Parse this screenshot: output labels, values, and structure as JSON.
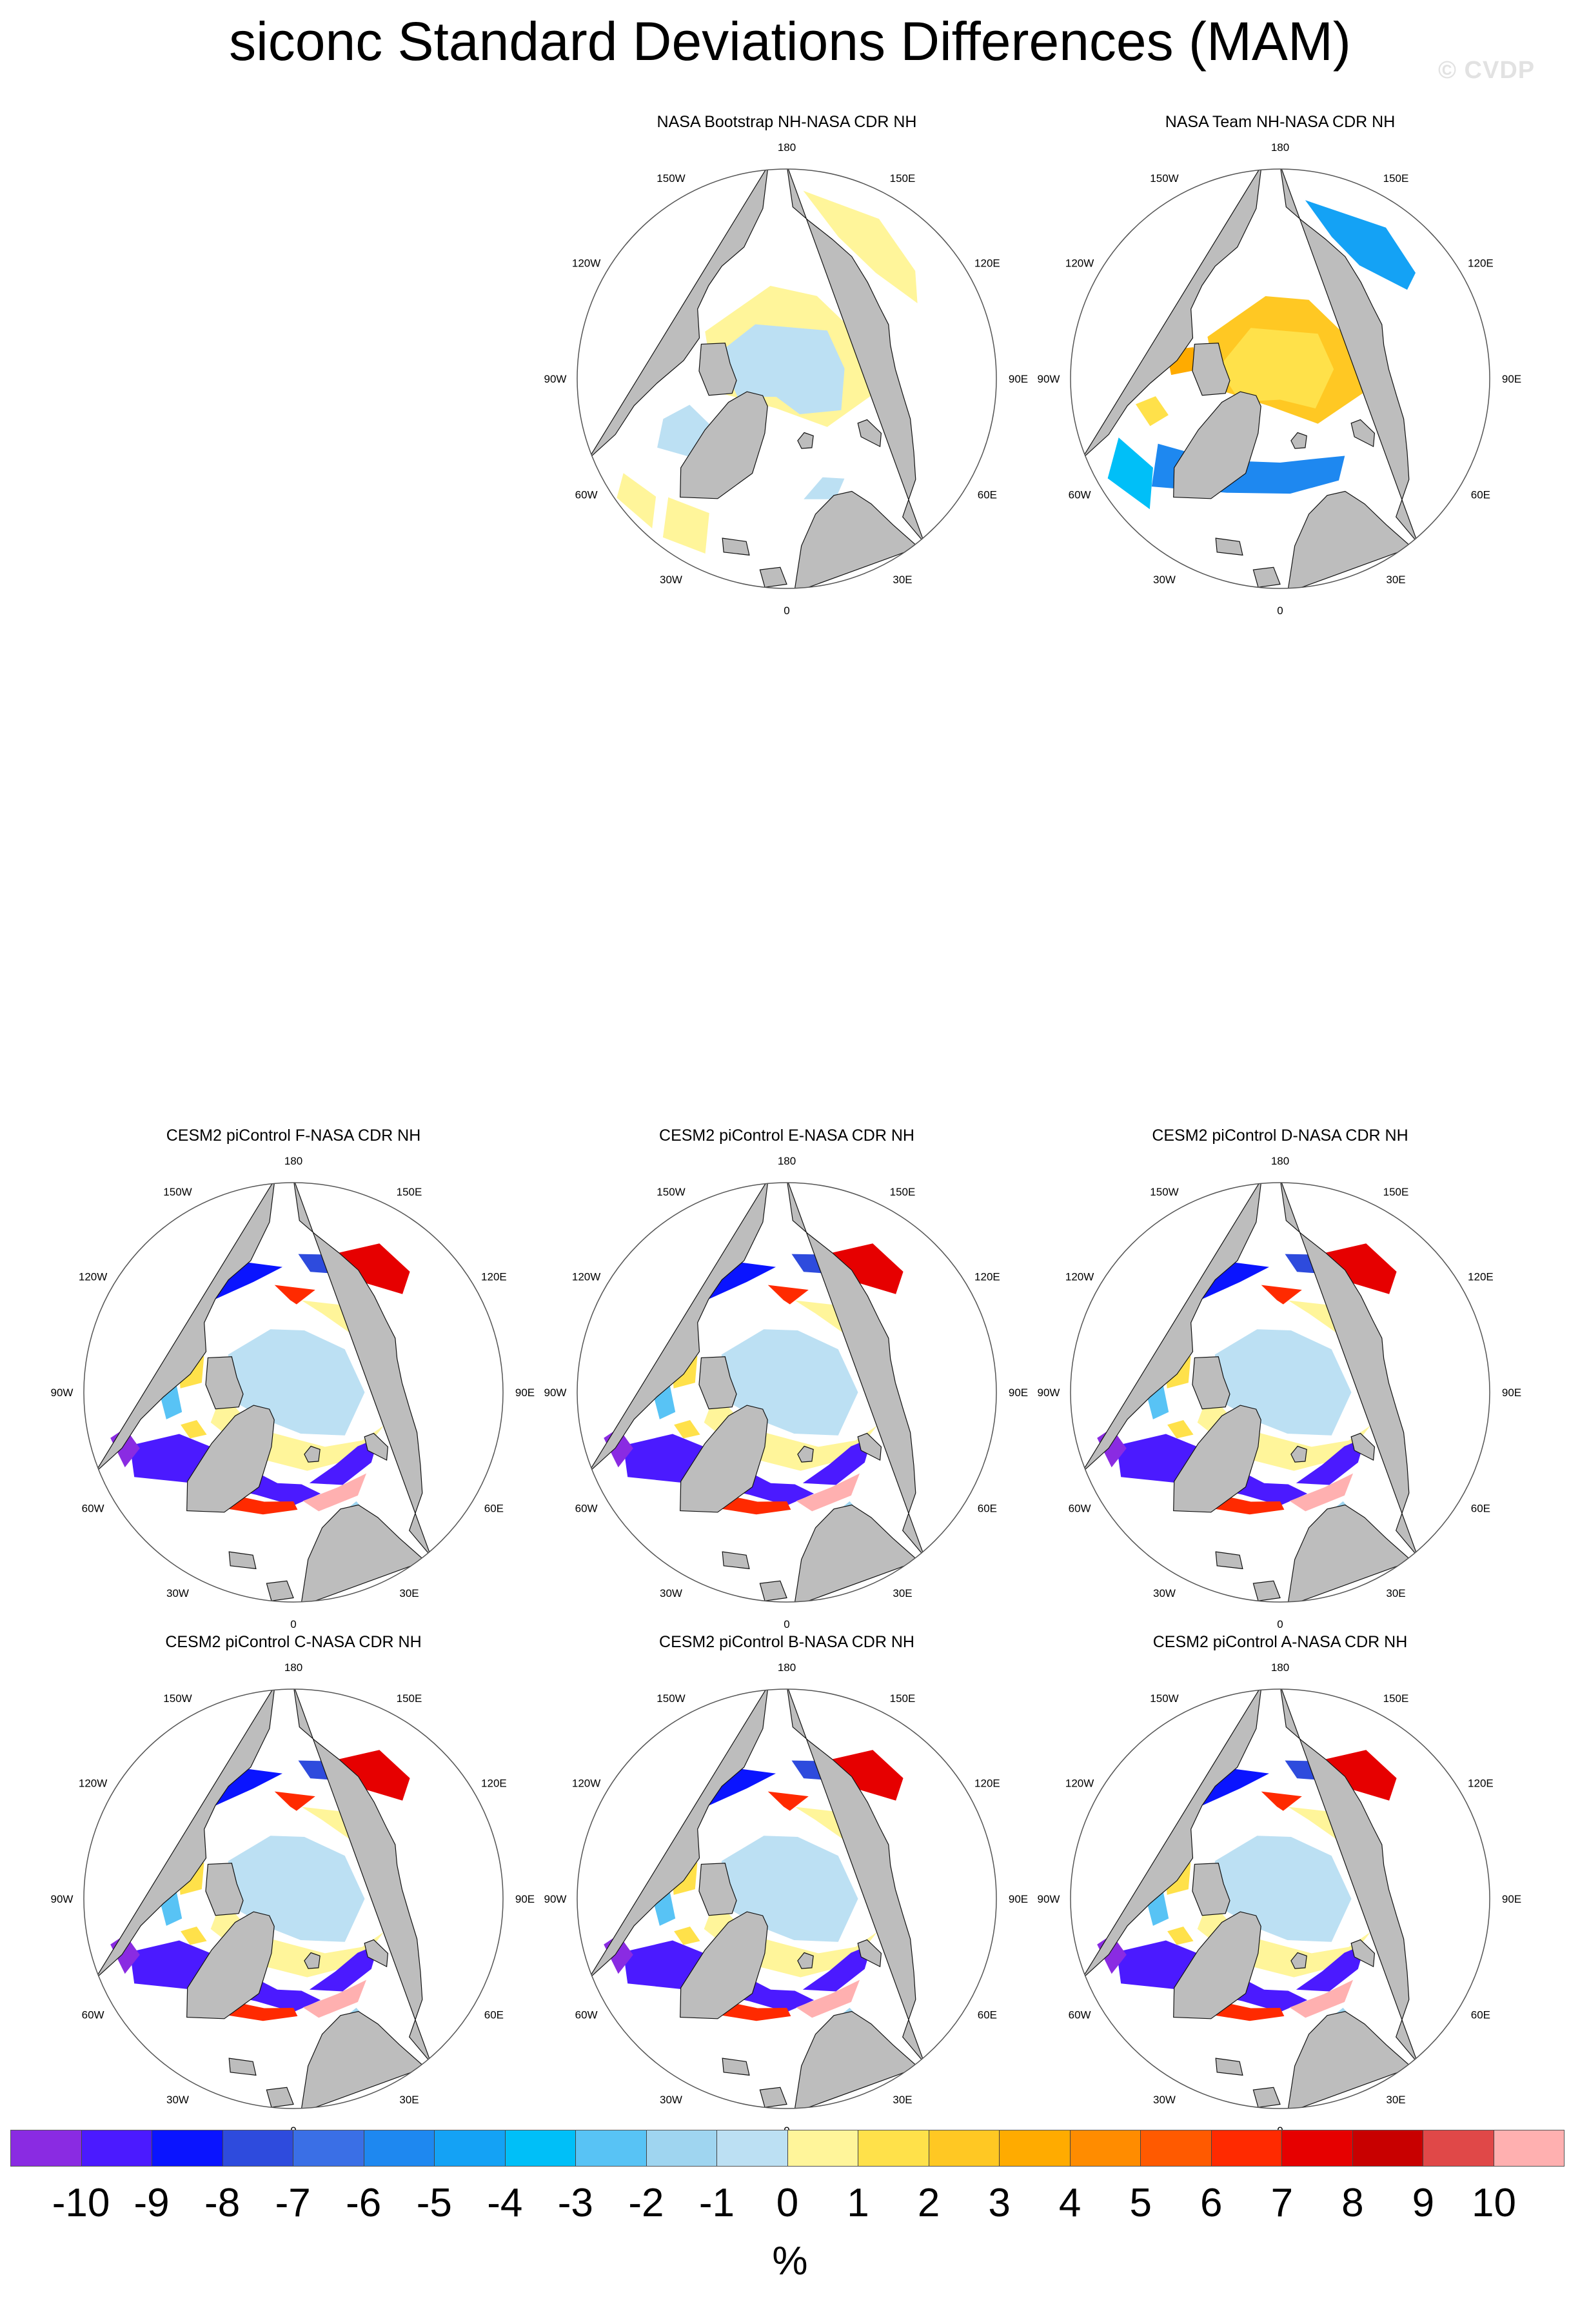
{
  "title": "siconc Standard Deviations Differences (MAM)",
  "watermark": "© CVDP",
  "lon_labels": [
    "180",
    "150E",
    "120E",
    "90E",
    "60E",
    "30E",
    "0",
    "30W",
    "60W",
    "90W",
    "120W",
    "150W"
  ],
  "panels": [
    {
      "title": "NASA Bootstrap NH-NASA CDR NH",
      "pattern": "bootstrap"
    },
    {
      "title": "NASA Team NH-NASA CDR NH",
      "pattern": "team"
    },
    {
      "title": "CESM2 piControl F-NASA CDR NH",
      "pattern": "model"
    },
    {
      "title": "CESM2 piControl E-NASA CDR NH",
      "pattern": "model"
    },
    {
      "title": "CESM2 piControl D-NASA CDR NH",
      "pattern": "model"
    },
    {
      "title": "CESM2 piControl C-NASA CDR NH",
      "pattern": "model"
    },
    {
      "title": "CESM2 piControl B-NASA CDR NH",
      "pattern": "model"
    },
    {
      "title": "CESM2 piControl A-NASA CDR NH",
      "pattern": "model"
    }
  ],
  "colorbar": {
    "labels": [
      "-10",
      "-9",
      "-8",
      "-7",
      "-6",
      "-5",
      "-4",
      "-3",
      "-2",
      "-1",
      "0",
      "1",
      "2",
      "3",
      "4",
      "5",
      "6",
      "7",
      "8",
      "9",
      "10"
    ],
    "units": "%",
    "colors": [
      "#8a2be2",
      "#4b1aff",
      "#0a14ff",
      "#2e4bdd",
      "#3a6fe6",
      "#1e88f0",
      "#14a2f5",
      "#00bff8",
      "#58c3f5",
      "#9fd5f0",
      "#bce0f3",
      "#fff59a",
      "#ffe14a",
      "#ffc823",
      "#ffab00",
      "#ff8c00",
      "#ff5a00",
      "#ff2a00",
      "#e60000",
      "#c80000",
      "#e04848",
      "#ffb0b0"
    ]
  }
}
